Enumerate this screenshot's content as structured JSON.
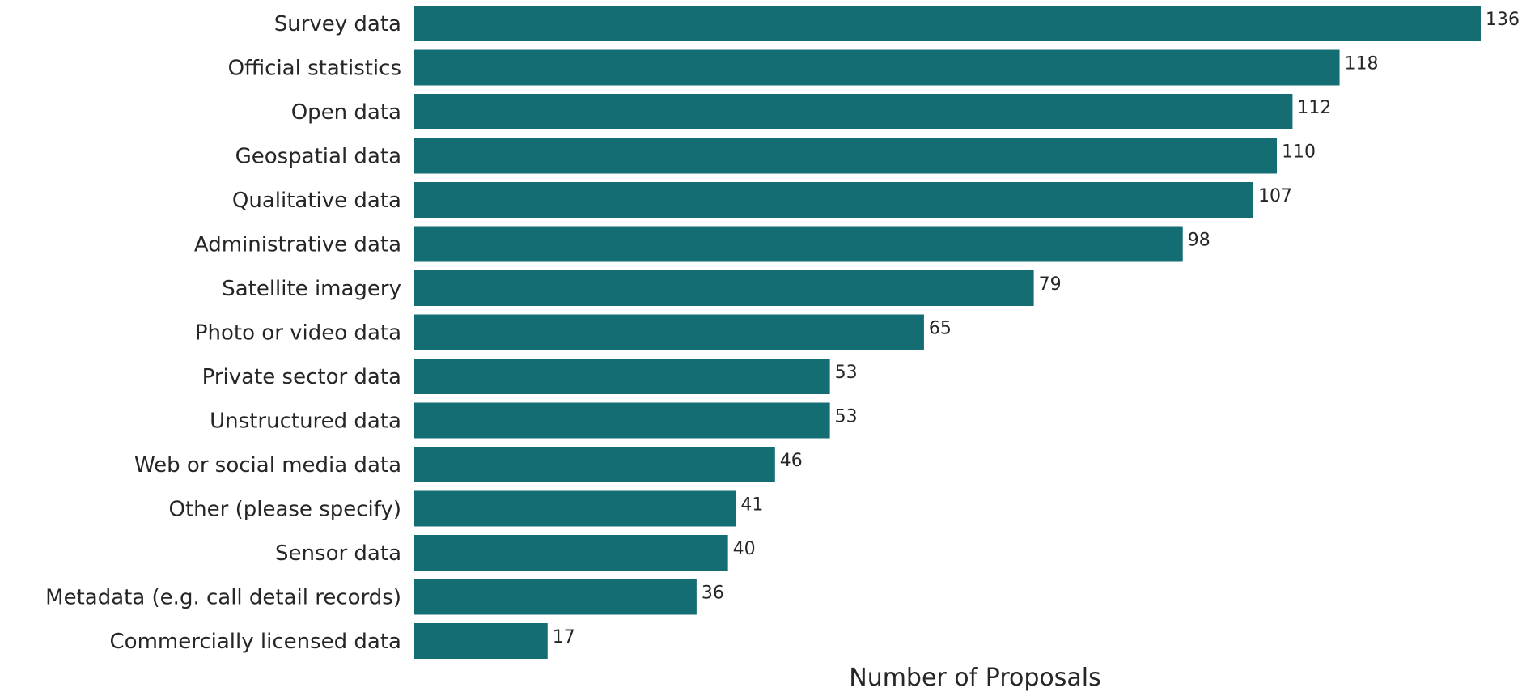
{
  "chart_data": {
    "type": "bar",
    "orientation": "horizontal",
    "categories": [
      "Survey data",
      "Official statistics",
      "Open data",
      "Geospatial data",
      "Qualitative data",
      "Administrative data",
      "Satellite imagery",
      "Photo or video data",
      "Private sector data",
      "Unstructured data",
      "Web or social media data",
      "Other (please specify)",
      "Sensor data",
      "Metadata (e.g. call detail records)",
      "Commercially licensed data"
    ],
    "values": [
      136,
      118,
      112,
      110,
      107,
      98,
      79,
      65,
      53,
      53,
      46,
      41,
      40,
      36,
      17
    ],
    "title": "",
    "xlabel": "Number of Proposals",
    "ylabel": "",
    "xlim": [
      0,
      136
    ],
    "grid": false,
    "bar_color": "#136d72",
    "data_labels": true
  }
}
